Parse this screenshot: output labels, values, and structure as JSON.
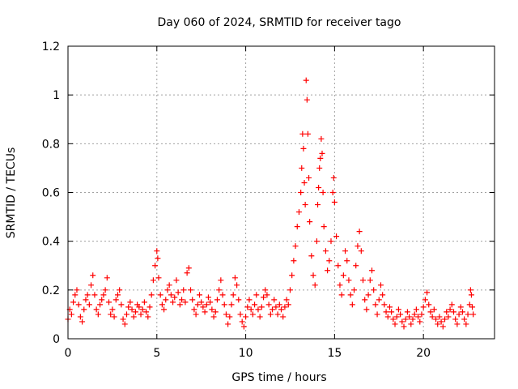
{
  "chart_data": {
    "type": "scatter",
    "title": "Day 060 of 2024, SRMTID for receiver tago",
    "xlabel": "GPS time / hours",
    "ylabel": "SRMTID / TECUs",
    "xlim": [
      0,
      24
    ],
    "ylim": [
      0,
      1.2
    ],
    "xticks": [
      {
        "value": 0,
        "label": "0"
      },
      {
        "value": 5,
        "label": "5"
      },
      {
        "value": 10,
        "label": "10"
      },
      {
        "value": 15,
        "label": "15"
      },
      {
        "value": 20,
        "label": "20"
      }
    ],
    "yticks": [
      {
        "value": 0,
        "label": "0"
      },
      {
        "value": 0.2,
        "label": "0.2"
      },
      {
        "value": 0.4,
        "label": "0.4"
      },
      {
        "value": 0.6,
        "label": "0.6"
      },
      {
        "value": 0.8,
        "label": "0.8"
      },
      {
        "value": 1.0,
        "label": "1"
      },
      {
        "value": 1.2,
        "label": "1.2"
      }
    ],
    "grid": true,
    "marker": "+",
    "color": "#ff0000",
    "series": [
      {
        "name": "SRMTID",
        "points": [
          [
            0.0,
            0.08
          ],
          [
            0.1,
            0.12
          ],
          [
            0.2,
            0.1
          ],
          [
            0.3,
            0.15
          ],
          [
            0.4,
            0.18
          ],
          [
            0.5,
            0.2
          ],
          [
            0.6,
            0.14
          ],
          [
            0.7,
            0.09
          ],
          [
            0.8,
            0.07
          ],
          [
            0.9,
            0.12
          ],
          [
            1.0,
            0.16
          ],
          [
            1.1,
            0.18
          ],
          [
            1.2,
            0.14
          ],
          [
            1.3,
            0.22
          ],
          [
            1.4,
            0.26
          ],
          [
            1.5,
            0.18
          ],
          [
            1.6,
            0.12
          ],
          [
            1.7,
            0.1
          ],
          [
            1.8,
            0.14
          ],
          [
            1.9,
            0.16
          ],
          [
            2.0,
            0.18
          ],
          [
            2.1,
            0.2
          ],
          [
            2.2,
            0.25
          ],
          [
            2.3,
            0.15
          ],
          [
            2.4,
            0.1
          ],
          [
            2.5,
            0.12
          ],
          [
            2.6,
            0.09
          ],
          [
            2.7,
            0.16
          ],
          [
            2.8,
            0.18
          ],
          [
            2.9,
            0.2
          ],
          [
            3.0,
            0.14
          ],
          [
            3.1,
            0.08
          ],
          [
            3.2,
            0.06
          ],
          [
            3.3,
            0.1
          ],
          [
            3.4,
            0.13
          ],
          [
            3.5,
            0.15
          ],
          [
            3.6,
            0.12
          ],
          [
            3.7,
            0.09
          ],
          [
            3.8,
            0.11
          ],
          [
            3.9,
            0.14
          ],
          [
            4.0,
            0.13
          ],
          [
            4.1,
            0.1
          ],
          [
            4.2,
            0.12
          ],
          [
            4.3,
            0.15
          ],
          [
            4.4,
            0.11
          ],
          [
            4.5,
            0.09
          ],
          [
            4.6,
            0.13
          ],
          [
            4.7,
            0.18
          ],
          [
            4.8,
            0.24
          ],
          [
            4.9,
            0.3
          ],
          [
            5.0,
            0.36
          ],
          [
            5.05,
            0.33
          ],
          [
            5.1,
            0.25
          ],
          [
            5.2,
            0.18
          ],
          [
            5.3,
            0.14
          ],
          [
            5.4,
            0.12
          ],
          [
            5.5,
            0.16
          ],
          [
            5.6,
            0.2
          ],
          [
            5.7,
            0.22
          ],
          [
            5.8,
            0.18
          ],
          [
            5.9,
            0.15
          ],
          [
            6.0,
            0.17
          ],
          [
            6.1,
            0.24
          ],
          [
            6.2,
            0.19
          ],
          [
            6.3,
            0.14
          ],
          [
            6.4,
            0.16
          ],
          [
            6.5,
            0.2
          ],
          [
            6.6,
            0.15
          ],
          [
            6.7,
            0.27
          ],
          [
            6.8,
            0.29
          ],
          [
            6.9,
            0.2
          ],
          [
            7.0,
            0.16
          ],
          [
            7.1,
            0.12
          ],
          [
            7.2,
            0.1
          ],
          [
            7.3,
            0.14
          ],
          [
            7.4,
            0.18
          ],
          [
            7.5,
            0.15
          ],
          [
            7.6,
            0.13
          ],
          [
            7.7,
            0.11
          ],
          [
            7.8,
            0.14
          ],
          [
            7.9,
            0.17
          ],
          [
            8.0,
            0.15
          ],
          [
            8.1,
            0.12
          ],
          [
            8.2,
            0.09
          ],
          [
            8.3,
            0.11
          ],
          [
            8.4,
            0.16
          ],
          [
            8.5,
            0.2
          ],
          [
            8.6,
            0.24
          ],
          [
            8.7,
            0.18
          ],
          [
            8.8,
            0.14
          ],
          [
            8.9,
            0.1
          ],
          [
            9.0,
            0.06
          ],
          [
            9.1,
            0.09
          ],
          [
            9.2,
            0.14
          ],
          [
            9.3,
            0.18
          ],
          [
            9.4,
            0.25
          ],
          [
            9.5,
            0.22
          ],
          [
            9.6,
            0.16
          ],
          [
            9.7,
            0.1
          ],
          [
            9.8,
            0.07
          ],
          [
            9.9,
            0.05
          ],
          [
            10.0,
            0.09
          ],
          [
            10.1,
            0.13
          ],
          [
            10.2,
            0.16
          ],
          [
            10.3,
            0.12
          ],
          [
            10.4,
            0.1
          ],
          [
            10.5,
            0.14
          ],
          [
            10.6,
            0.18
          ],
          [
            10.7,
            0.12
          ],
          [
            10.8,
            0.09
          ],
          [
            10.9,
            0.13
          ],
          [
            11.0,
            0.17
          ],
          [
            11.1,
            0.2
          ],
          [
            11.2,
            0.18
          ],
          [
            11.3,
            0.14
          ],
          [
            11.4,
            0.1
          ],
          [
            11.5,
            0.12
          ],
          [
            11.6,
            0.16
          ],
          [
            11.7,
            0.13
          ],
          [
            11.8,
            0.1
          ],
          [
            11.9,
            0.14
          ],
          [
            12.0,
            0.12
          ],
          [
            12.1,
            0.09
          ],
          [
            12.2,
            0.13
          ],
          [
            12.3,
            0.16
          ],
          [
            12.4,
            0.14
          ],
          [
            12.5,
            0.2
          ],
          [
            12.6,
            0.26
          ],
          [
            12.7,
            0.32
          ],
          [
            12.8,
            0.38
          ],
          [
            12.9,
            0.46
          ],
          [
            13.0,
            0.52
          ],
          [
            13.1,
            0.6
          ],
          [
            13.15,
            0.7
          ],
          [
            13.2,
            0.84
          ],
          [
            13.25,
            0.78
          ],
          [
            13.3,
            0.64
          ],
          [
            13.35,
            0.55
          ],
          [
            13.4,
            1.06
          ],
          [
            13.45,
            0.98
          ],
          [
            13.5,
            0.84
          ],
          [
            13.55,
            0.66
          ],
          [
            13.6,
            0.48
          ],
          [
            13.7,
            0.34
          ],
          [
            13.8,
            0.26
          ],
          [
            13.9,
            0.22
          ],
          [
            14.0,
            0.4
          ],
          [
            14.05,
            0.55
          ],
          [
            14.1,
            0.62
          ],
          [
            14.15,
            0.7
          ],
          [
            14.2,
            0.74
          ],
          [
            14.25,
            0.82
          ],
          [
            14.3,
            0.76
          ],
          [
            14.35,
            0.6
          ],
          [
            14.4,
            0.46
          ],
          [
            14.5,
            0.36
          ],
          [
            14.6,
            0.28
          ],
          [
            14.7,
            0.32
          ],
          [
            14.8,
            0.4
          ],
          [
            14.9,
            0.6
          ],
          [
            14.95,
            0.66
          ],
          [
            15.0,
            0.56
          ],
          [
            15.1,
            0.42
          ],
          [
            15.2,
            0.3
          ],
          [
            15.3,
            0.22
          ],
          [
            15.4,
            0.18
          ],
          [
            15.5,
            0.26
          ],
          [
            15.6,
            0.36
          ],
          [
            15.7,
            0.32
          ],
          [
            15.8,
            0.24
          ],
          [
            15.9,
            0.18
          ],
          [
            16.0,
            0.14
          ],
          [
            16.1,
            0.2
          ],
          [
            16.2,
            0.3
          ],
          [
            16.3,
            0.38
          ],
          [
            16.4,
            0.44
          ],
          [
            16.5,
            0.36
          ],
          [
            16.6,
            0.24
          ],
          [
            16.7,
            0.16
          ],
          [
            16.8,
            0.12
          ],
          [
            16.9,
            0.18
          ],
          [
            17.0,
            0.24
          ],
          [
            17.1,
            0.28
          ],
          [
            17.2,
            0.2
          ],
          [
            17.3,
            0.14
          ],
          [
            17.4,
            0.1
          ],
          [
            17.5,
            0.16
          ],
          [
            17.6,
            0.22
          ],
          [
            17.7,
            0.18
          ],
          [
            17.8,
            0.14
          ],
          [
            17.9,
            0.11
          ],
          [
            18.0,
            0.09
          ],
          [
            18.1,
            0.13
          ],
          [
            18.2,
            0.11
          ],
          [
            18.3,
            0.08
          ],
          [
            18.4,
            0.06
          ],
          [
            18.5,
            0.09
          ],
          [
            18.6,
            0.12
          ],
          [
            18.7,
            0.1
          ],
          [
            18.8,
            0.07
          ],
          [
            18.9,
            0.05
          ],
          [
            19.0,
            0.08
          ],
          [
            19.1,
            0.11
          ],
          [
            19.2,
            0.09
          ],
          [
            19.3,
            0.06
          ],
          [
            19.4,
            0.08
          ],
          [
            19.5,
            0.1
          ],
          [
            19.6,
            0.12
          ],
          [
            19.7,
            0.09
          ],
          [
            19.8,
            0.07
          ],
          [
            19.9,
            0.1
          ],
          [
            20.0,
            0.13
          ],
          [
            20.1,
            0.16
          ],
          [
            20.2,
            0.19
          ],
          [
            20.3,
            0.14
          ],
          [
            20.4,
            0.11
          ],
          [
            20.5,
            0.09
          ],
          [
            20.6,
            0.12
          ],
          [
            20.7,
            0.08
          ],
          [
            20.8,
            0.06
          ],
          [
            20.9,
            0.09
          ],
          [
            21.0,
            0.07
          ],
          [
            21.1,
            0.05
          ],
          [
            21.2,
            0.08
          ],
          [
            21.3,
            0.11
          ],
          [
            21.4,
            0.09
          ],
          [
            21.5,
            0.12
          ],
          [
            21.6,
            0.14
          ],
          [
            21.7,
            0.11
          ],
          [
            21.8,
            0.08
          ],
          [
            21.9,
            0.06
          ],
          [
            22.0,
            0.1
          ],
          [
            22.1,
            0.13
          ],
          [
            22.2,
            0.11
          ],
          [
            22.3,
            0.08
          ],
          [
            22.4,
            0.06
          ],
          [
            22.5,
            0.1
          ],
          [
            22.6,
            0.14
          ],
          [
            22.65,
            0.2
          ],
          [
            22.7,
            0.18
          ],
          [
            22.75,
            0.13
          ],
          [
            22.8,
            0.1
          ]
        ]
      }
    ]
  }
}
